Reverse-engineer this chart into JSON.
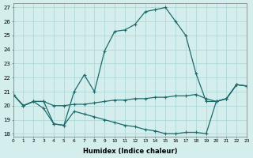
{
  "line1_x": [
    0,
    1,
    2,
    3,
    4,
    5,
    6,
    7,
    8,
    9,
    10,
    11,
    12,
    13,
    14,
    15,
    16,
    17,
    18,
    19,
    20,
    21,
    22,
    23
  ],
  "line1_y": [
    20.8,
    20.0,
    20.3,
    20.3,
    18.7,
    18.6,
    21.0,
    22.2,
    21.0,
    23.9,
    25.3,
    25.4,
    25.8,
    26.7,
    26.85,
    27.0,
    26.0,
    25.0,
    22.3,
    20.3,
    20.3,
    20.5,
    21.5,
    21.4
  ],
  "line2_x": [
    0,
    1,
    2,
    3,
    4,
    5,
    6,
    7,
    8,
    9,
    10,
    11,
    12,
    13,
    14,
    15,
    16,
    17,
    18,
    19,
    20,
    21,
    22,
    23
  ],
  "line2_y": [
    20.8,
    20.0,
    20.3,
    20.3,
    20.0,
    20.0,
    20.1,
    20.1,
    20.2,
    20.3,
    20.4,
    20.4,
    20.5,
    20.5,
    20.6,
    20.6,
    20.7,
    20.7,
    20.8,
    20.5,
    20.3,
    20.5,
    21.5,
    21.4
  ],
  "line3_x": [
    0,
    1,
    2,
    3,
    4,
    5,
    6,
    7,
    8,
    9,
    10,
    11,
    12,
    13,
    14,
    15,
    16,
    17,
    18,
    19,
    20,
    21,
    22,
    23
  ],
  "line3_y": [
    20.8,
    20.0,
    20.3,
    19.8,
    18.7,
    18.6,
    19.6,
    19.4,
    19.2,
    19.0,
    18.8,
    18.6,
    18.5,
    18.3,
    18.2,
    18.0,
    18.0,
    18.1,
    18.1,
    18.0,
    20.3,
    20.5,
    21.5,
    21.4
  ],
  "line_color": "#1c6b6b",
  "bg_color": "#d4eeed",
  "grid_color": "#aad4d4",
  "xlabel": "Humidex (Indice chaleur)",
  "xlim": [
    0,
    23
  ],
  "ylim": [
    17.8,
    27.3
  ],
  "yticks": [
    18,
    19,
    20,
    21,
    22,
    23,
    24,
    25,
    26,
    27
  ],
  "xticks": [
    0,
    1,
    2,
    3,
    4,
    5,
    6,
    7,
    8,
    9,
    10,
    11,
    12,
    13,
    14,
    15,
    16,
    17,
    18,
    19,
    20,
    21,
    22,
    23
  ]
}
